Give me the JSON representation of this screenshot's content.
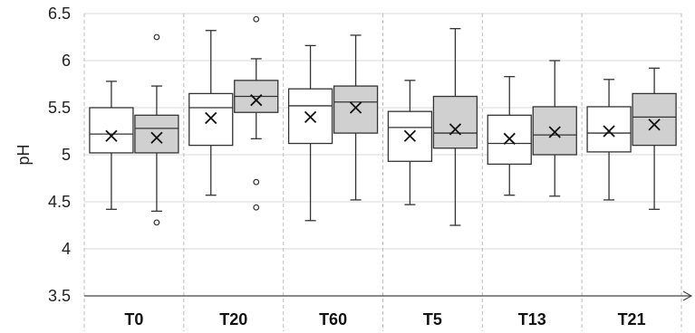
{
  "chart_data": {
    "type": "boxplot",
    "title": "",
    "xlabel": "",
    "ylabel": "pH",
    "ylim": [
      3.5,
      6.5
    ],
    "yticks": [
      "3.5",
      "4",
      "4.5",
      "5",
      "5.5",
      "6",
      "6.5"
    ],
    "categories": [
      "T0",
      "T20",
      "T60",
      "T5",
      "T13",
      "T21"
    ],
    "grid": "horizontal solid, vertical dashed",
    "legend": "none",
    "colors": {
      "white_box": "#ffffff",
      "gray_box": "#d0d0d0",
      "stroke": "#333333"
    },
    "groups": [
      {
        "category": "T0",
        "boxes": [
          {
            "fill": "white",
            "min": 4.42,
            "q1": 5.02,
            "median": 5.22,
            "q3": 5.5,
            "max": 5.78,
            "mean": 5.2,
            "outliers": []
          },
          {
            "fill": "gray",
            "min": 4.4,
            "q1": 5.02,
            "median": 5.28,
            "q3": 5.42,
            "max": 5.73,
            "mean": 5.18,
            "outliers": [
              6.25,
              4.28
            ]
          }
        ]
      },
      {
        "category": "T20",
        "boxes": [
          {
            "fill": "white",
            "min": 4.57,
            "q1": 5.1,
            "median": 5.5,
            "q3": 5.65,
            "max": 6.32,
            "mean": 5.39,
            "outliers": []
          },
          {
            "fill": "gray",
            "min": 5.17,
            "q1": 5.45,
            "median": 5.62,
            "q3": 5.79,
            "max": 6.02,
            "mean": 5.58,
            "outliers": [
              6.44,
              4.71,
              4.44
            ]
          }
        ]
      },
      {
        "category": "T60",
        "boxes": [
          {
            "fill": "white",
            "min": 4.3,
            "q1": 5.12,
            "median": 5.52,
            "q3": 5.7,
            "max": 6.16,
            "mean": 5.4,
            "outliers": []
          },
          {
            "fill": "gray",
            "min": 4.52,
            "q1": 5.23,
            "median": 5.56,
            "q3": 5.73,
            "max": 6.27,
            "mean": 5.5,
            "outliers": []
          }
        ]
      },
      {
        "category": "T5",
        "boxes": [
          {
            "fill": "white",
            "min": 4.47,
            "q1": 4.93,
            "median": 5.29,
            "q3": 5.46,
            "max": 5.79,
            "mean": 5.2,
            "outliers": []
          },
          {
            "fill": "gray",
            "min": 4.25,
            "q1": 5.07,
            "median": 5.23,
            "q3": 5.62,
            "max": 6.34,
            "mean": 5.27,
            "outliers": []
          }
        ]
      },
      {
        "category": "T13",
        "boxes": [
          {
            "fill": "white",
            "min": 4.57,
            "q1": 4.9,
            "median": 5.12,
            "q3": 5.42,
            "max": 5.83,
            "mean": 5.17,
            "outliers": []
          },
          {
            "fill": "gray",
            "min": 4.56,
            "q1": 5.0,
            "median": 5.21,
            "q3": 5.51,
            "max": 6.0,
            "mean": 5.24,
            "outliers": []
          }
        ]
      },
      {
        "category": "T21",
        "boxes": [
          {
            "fill": "white",
            "min": 4.52,
            "q1": 5.03,
            "median": 5.23,
            "q3": 5.51,
            "max": 5.8,
            "mean": 5.25,
            "outliers": []
          },
          {
            "fill": "gray",
            "min": 4.42,
            "q1": 5.1,
            "median": 5.4,
            "q3": 5.65,
            "max": 5.92,
            "mean": 5.32,
            "outliers": []
          }
        ]
      }
    ]
  }
}
